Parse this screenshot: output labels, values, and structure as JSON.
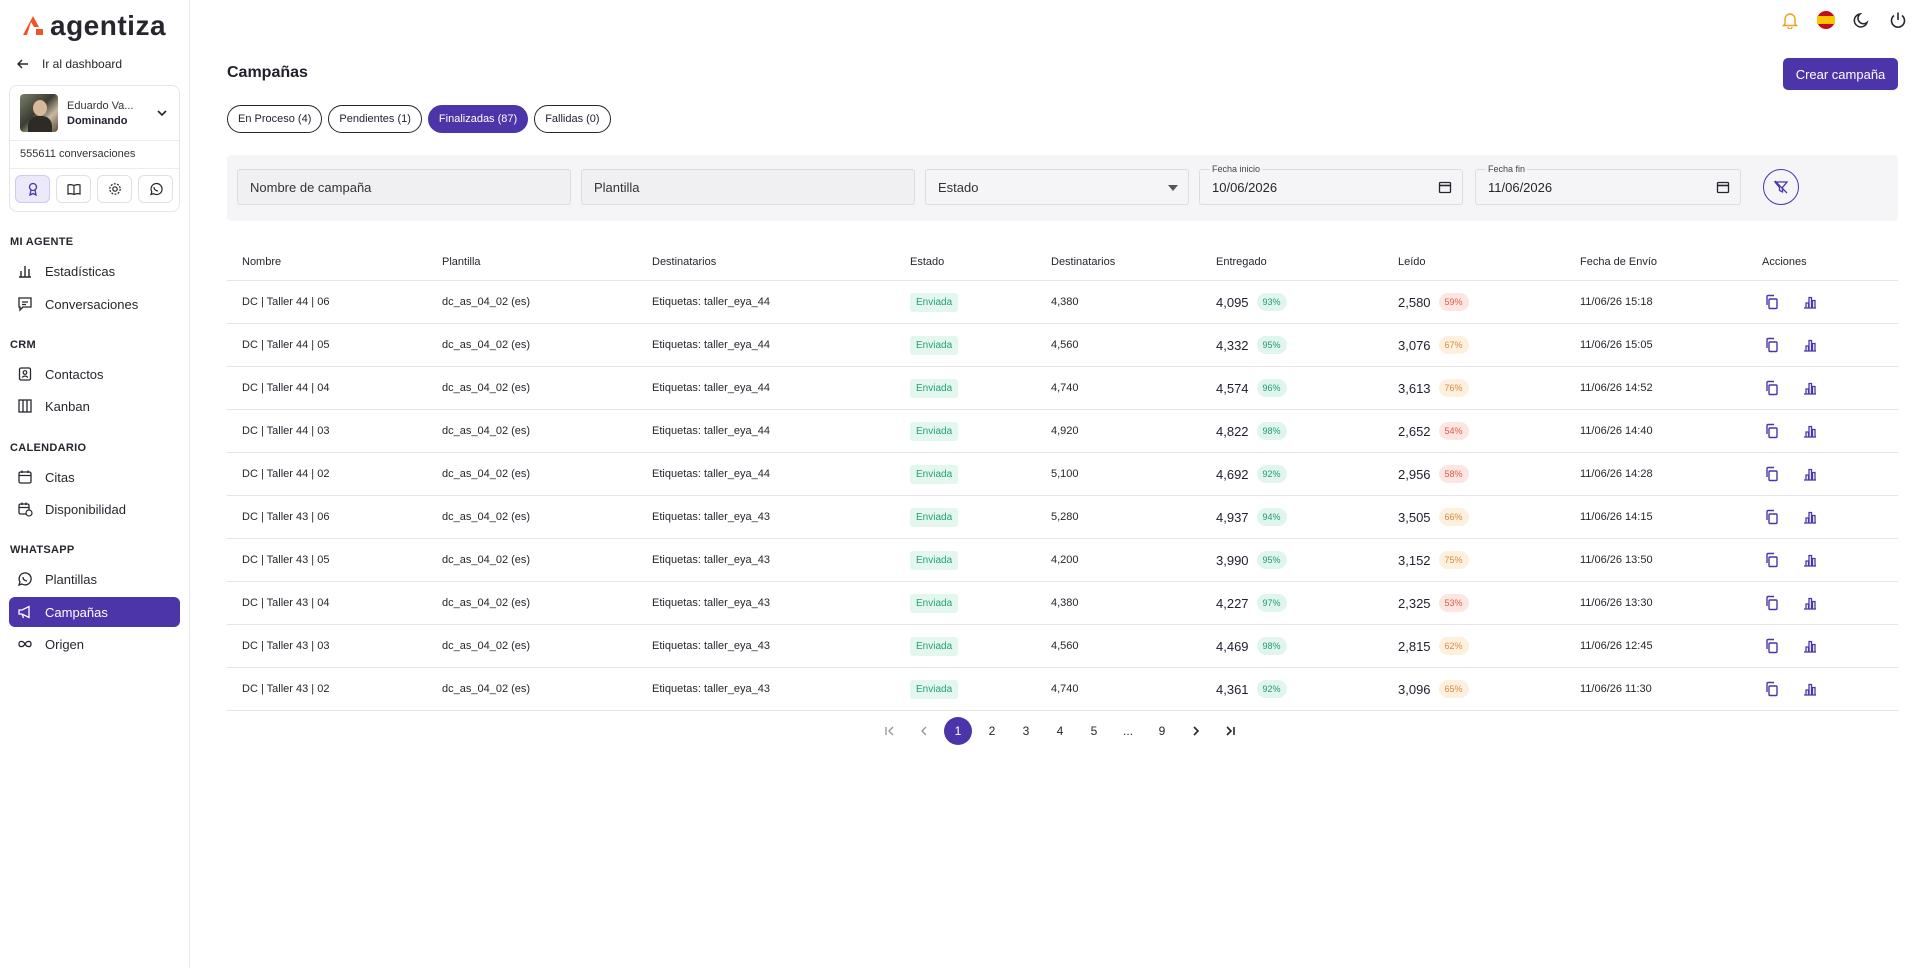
{
  "brand": {
    "name": "agentiza",
    "accent": "#4b35a8",
    "logo_orange": "#f0552a"
  },
  "sidebar": {
    "back_label": "Ir al dashboard",
    "profile": {
      "name": "Eduardo Va...",
      "status": "Dominando",
      "conversations": "555611 conversaciones"
    },
    "sections": {
      "agent": "MI AGENTE",
      "crm": "CRM",
      "calendar": "CALENDARIO",
      "whatsapp": "WHATSAPP"
    },
    "items": {
      "stats": "Estadísticas",
      "conversations": "Conversaciones",
      "contacts": "Contactos",
      "kanban": "Kanban",
      "appointments": "Citas",
      "availability": "Disponibilidad",
      "templates": "Plantillas",
      "campaigns": "Campañas",
      "origin": "Origen"
    }
  },
  "header": {
    "title": "Campañas",
    "create_label": "Crear campaña"
  },
  "tabs": [
    {
      "label": "En Proceso (4)"
    },
    {
      "label": "Pendientes (1)"
    },
    {
      "label": "Finalizadas (87)"
    },
    {
      "label": "Fallidas (0)"
    }
  ],
  "filters": {
    "name_placeholder": "Nombre de campaña",
    "template_placeholder": "Plantilla",
    "status_placeholder": "Estado",
    "start_label": "Fecha inicio",
    "start_value": "10/06/2026",
    "end_label": "Fecha fin",
    "end_value": "11/06/2026"
  },
  "table": {
    "headers": [
      "Nombre",
      "Plantilla",
      "Destinatarios",
      "Estado",
      "Destinatarios",
      "Entregado",
      "Leído",
      "Fecha de Envío",
      "Acciones"
    ],
    "rows": [
      {
        "name": "DC | Taller 44 | 06",
        "template": "dc_as_04_02 (es)",
        "tags": "Etiquetas: taller_eya_44",
        "status": "Enviada",
        "recipients": "4,380",
        "delivered": "4,095",
        "delivered_pct": "93%",
        "read": "2,580",
        "read_pct": "59%",
        "date": "11/06/26 15:18"
      },
      {
        "name": "DC | Taller 44 | 05",
        "template": "dc_as_04_02 (es)",
        "tags": "Etiquetas: taller_eya_44",
        "status": "Enviada",
        "recipients": "4,560",
        "delivered": "4,332",
        "delivered_pct": "95%",
        "read": "3,076",
        "read_pct": "67%",
        "date": "11/06/26 15:05"
      },
      {
        "name": "DC | Taller 44 | 04",
        "template": "dc_as_04_02 (es)",
        "tags": "Etiquetas: taller_eya_44",
        "status": "Enviada",
        "recipients": "4,740",
        "delivered": "4,574",
        "delivered_pct": "96%",
        "read": "3,613",
        "read_pct": "76%",
        "date": "11/06/26 14:52"
      },
      {
        "name": "DC | Taller 44 | 03",
        "template": "dc_as_04_02 (es)",
        "tags": "Etiquetas: taller_eya_44",
        "status": "Enviada",
        "recipients": "4,920",
        "delivered": "4,822",
        "delivered_pct": "98%",
        "read": "2,652",
        "read_pct": "54%",
        "date": "11/06/26 14:40"
      },
      {
        "name": "DC | Taller 44 | 02",
        "template": "dc_as_04_02 (es)",
        "tags": "Etiquetas: taller_eya_44",
        "status": "Enviada",
        "recipients": "5,100",
        "delivered": "4,692",
        "delivered_pct": "92%",
        "read": "2,956",
        "read_pct": "58%",
        "date": "11/06/26 14:28"
      },
      {
        "name": "DC | Taller 43 | 06",
        "template": "dc_as_04_02 (es)",
        "tags": "Etiquetas: taller_eya_43",
        "status": "Enviada",
        "recipients": "5,280",
        "delivered": "4,937",
        "delivered_pct": "94%",
        "read": "3,505",
        "read_pct": "66%",
        "date": "11/06/26 14:15"
      },
      {
        "name": "DC | Taller 43 | 05",
        "template": "dc_as_04_02 (es)",
        "tags": "Etiquetas: taller_eya_43",
        "status": "Enviada",
        "recipients": "4,200",
        "delivered": "3,990",
        "delivered_pct": "95%",
        "read": "3,152",
        "read_pct": "75%",
        "date": "11/06/26 13:50"
      },
      {
        "name": "DC | Taller 43 | 04",
        "template": "dc_as_04_02 (es)",
        "tags": "Etiquetas: taller_eya_43",
        "status": "Enviada",
        "recipients": "4,380",
        "delivered": "4,227",
        "delivered_pct": "97%",
        "read": "2,325",
        "read_pct": "53%",
        "date": "11/06/26 13:30"
      },
      {
        "name": "DC | Taller 43 | 03",
        "template": "dc_as_04_02 (es)",
        "tags": "Etiquetas: taller_eya_43",
        "status": "Enviada",
        "recipients": "4,560",
        "delivered": "4,469",
        "delivered_pct": "98%",
        "read": "2,815",
        "read_pct": "62%",
        "date": "11/06/26 12:45"
      },
      {
        "name": "DC | Taller 43 | 02",
        "template": "dc_as_04_02 (es)",
        "tags": "Etiquetas: taller_eya_43",
        "status": "Enviada",
        "recipients": "4,740",
        "delivered": "4,361",
        "delivered_pct": "92%",
        "read": "3,096",
        "read_pct": "65%",
        "date": "11/06/26 11:30"
      }
    ]
  },
  "pagination": {
    "pages": [
      "1",
      "2",
      "3",
      "4",
      "5",
      "...",
      "9"
    ]
  }
}
